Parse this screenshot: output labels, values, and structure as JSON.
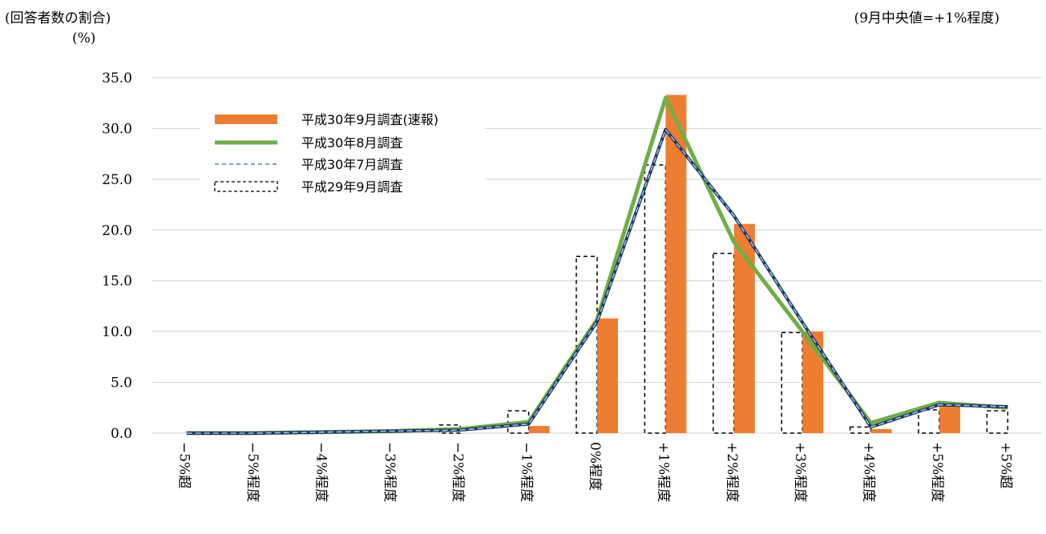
{
  "header": {
    "ylabel": "(回答者数の割合)",
    "unit": "(%)",
    "median_note": "(9月中央値=+1%程度)"
  },
  "chart_data": {
    "type": "bar",
    "categories": [
      "−5%超",
      "−5%程度",
      "−4%程度",
      "−3%程度",
      "−2%程度",
      "−1%程度",
      "0%程度",
      "+1%程度",
      "+2%程度",
      "+3%程度",
      "+4%程度",
      "+5%程度",
      "+5%超"
    ],
    "ylim": [
      0,
      35
    ],
    "yticks": [
      "0.0",
      "5.0",
      "10.0",
      "15.0",
      "20.0",
      "25.0",
      "30.0",
      "35.0"
    ],
    "grid": true,
    "legend_position": "top-left",
    "series": [
      {
        "name": "平成30年9月調査(速報)",
        "kind": "bar",
        "color": "#ED7D31",
        "values": [
          0.0,
          0.0,
          0.0,
          0.0,
          0.0,
          0.7,
          11.3,
          33.3,
          20.6,
          10.0,
          0.4,
          2.8,
          0.0
        ]
      },
      {
        "name": "平成30年8月調査",
        "kind": "line",
        "color": "#70AD47",
        "values": [
          0.0,
          0.0,
          0.1,
          0.2,
          0.4,
          1.1,
          11.2,
          33.0,
          18.8,
          10.0,
          1.0,
          3.0,
          2.5
        ]
      },
      {
        "name": "平成30年7月調査",
        "kind": "dashed-line",
        "color": "#1F3864",
        "values": [
          0.0,
          0.0,
          0.1,
          0.2,
          0.3,
          0.9,
          11.0,
          29.9,
          21.4,
          10.9,
          0.6,
          2.8,
          2.6
        ]
      },
      {
        "name": "平成29年9月調査",
        "kind": "dashed-bar",
        "color": "#000000",
        "values": [
          0.0,
          0.0,
          0.0,
          0.0,
          0.8,
          2.2,
          17.4,
          26.4,
          17.7,
          9.9,
          0.6,
          2.3,
          2.2
        ]
      }
    ]
  }
}
